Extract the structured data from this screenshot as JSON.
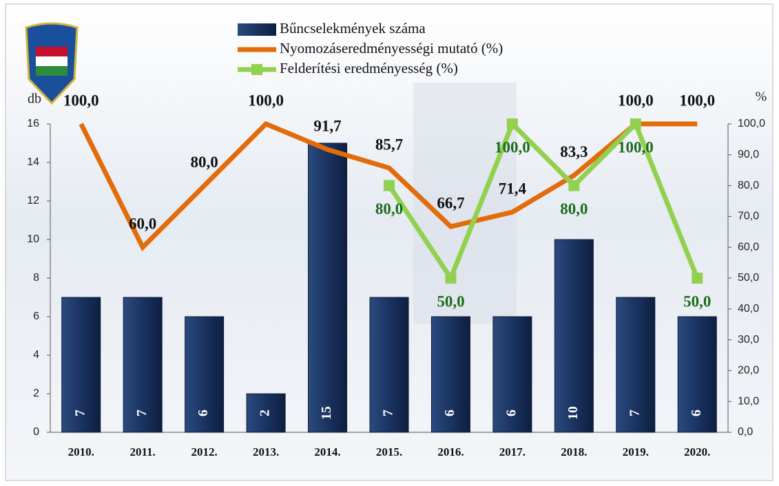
{
  "chart_data": {
    "type": "bar_line",
    "categories": [
      "2010.",
      "2011.",
      "2012.",
      "2013.",
      "2014.",
      "2015.",
      "2016.",
      "2017.",
      "2018.",
      "2019.",
      "2020."
    ],
    "ylabel": "db",
    "y2label": "%",
    "ylim": [
      0,
      16
    ],
    "yticks": [
      0,
      2,
      4,
      6,
      8,
      10,
      12,
      14,
      16
    ],
    "y2lim": [
      0,
      100
    ],
    "y2ticks": [
      {
        "value": 0,
        "label": "0,0"
      },
      {
        "value": 10,
        "label": "10,0"
      },
      {
        "value": 20,
        "label": "20,0"
      },
      {
        "value": 30,
        "label": "30,0"
      },
      {
        "value": 40,
        "label": "40,0"
      },
      {
        "value": 50,
        "label": "50,0"
      },
      {
        "value": 60,
        "label": "60,0"
      },
      {
        "value": 70,
        "label": "70,0"
      },
      {
        "value": 80,
        "label": "80,0"
      },
      {
        "value": 90,
        "label": "90,0"
      },
      {
        "value": 100,
        "label": "100,0"
      }
    ],
    "series": [
      {
        "name": "Bűncselekmények száma",
        "type": "bar",
        "color": "#1f3864",
        "values": [
          7,
          7,
          6,
          2,
          15,
          7,
          6,
          6,
          10,
          7,
          6
        ]
      },
      {
        "name": "Nyomozáseredményességi mutató (%)",
        "type": "line",
        "axis": "y2",
        "color": "#e36c0a",
        "values": [
          100,
          60,
          80,
          100,
          91.7,
          85.7,
          66.7,
          71.4,
          83.3,
          100,
          100
        ],
        "value_labels": [
          "100,0",
          "60,0",
          "80,0",
          "100,0",
          "91,7",
          "85,7",
          "66,7",
          "71,4",
          "83,3",
          "100,0",
          "100,0"
        ]
      },
      {
        "name": "Felderítési eredményesség (%)",
        "type": "line",
        "axis": "y2",
        "color": "#92d050",
        "marker": "square",
        "values": [
          null,
          null,
          null,
          null,
          null,
          80,
          50,
          100,
          80,
          100,
          50
        ],
        "value_labels": [
          null,
          null,
          null,
          null,
          null,
          "80,0",
          "50,0",
          "100,0",
          "80,0",
          "100,0",
          "50,0"
        ]
      }
    ]
  }
}
